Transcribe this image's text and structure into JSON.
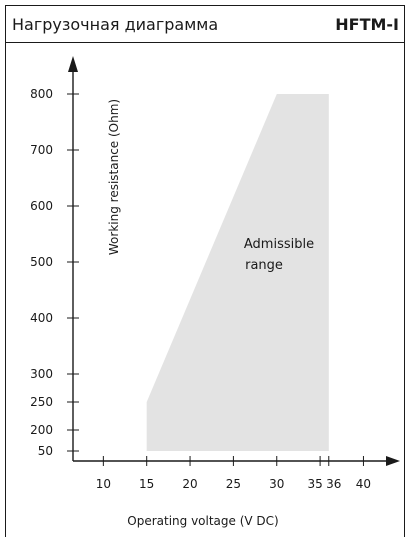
{
  "header": {
    "title": "Нагрузочная диаграмма",
    "model": "HFTM-I"
  },
  "chart_data": {
    "type": "area",
    "title": "Нагрузочная диаграмма",
    "xlabel": "Operating voltage  (V DC)",
    "ylabel": "Working resistance  (Ohm)",
    "x_ticks": [
      10,
      15,
      20,
      25,
      30,
      35,
      36,
      40
    ],
    "y_ticks": [
      50,
      200,
      250,
      300,
      400,
      500,
      600,
      700,
      800
    ],
    "xlim": [
      5,
      44
    ],
    "region": {
      "label_line1": "Admissible",
      "label_line2": "range",
      "color": "#e3e3e3",
      "points": [
        {
          "x": 15,
          "y": 50
        },
        {
          "x": 15,
          "y": 250
        },
        {
          "x": 30,
          "y": 800
        },
        {
          "x": 36,
          "y": 800
        },
        {
          "x": 36,
          "y": 50
        }
      ]
    }
  }
}
